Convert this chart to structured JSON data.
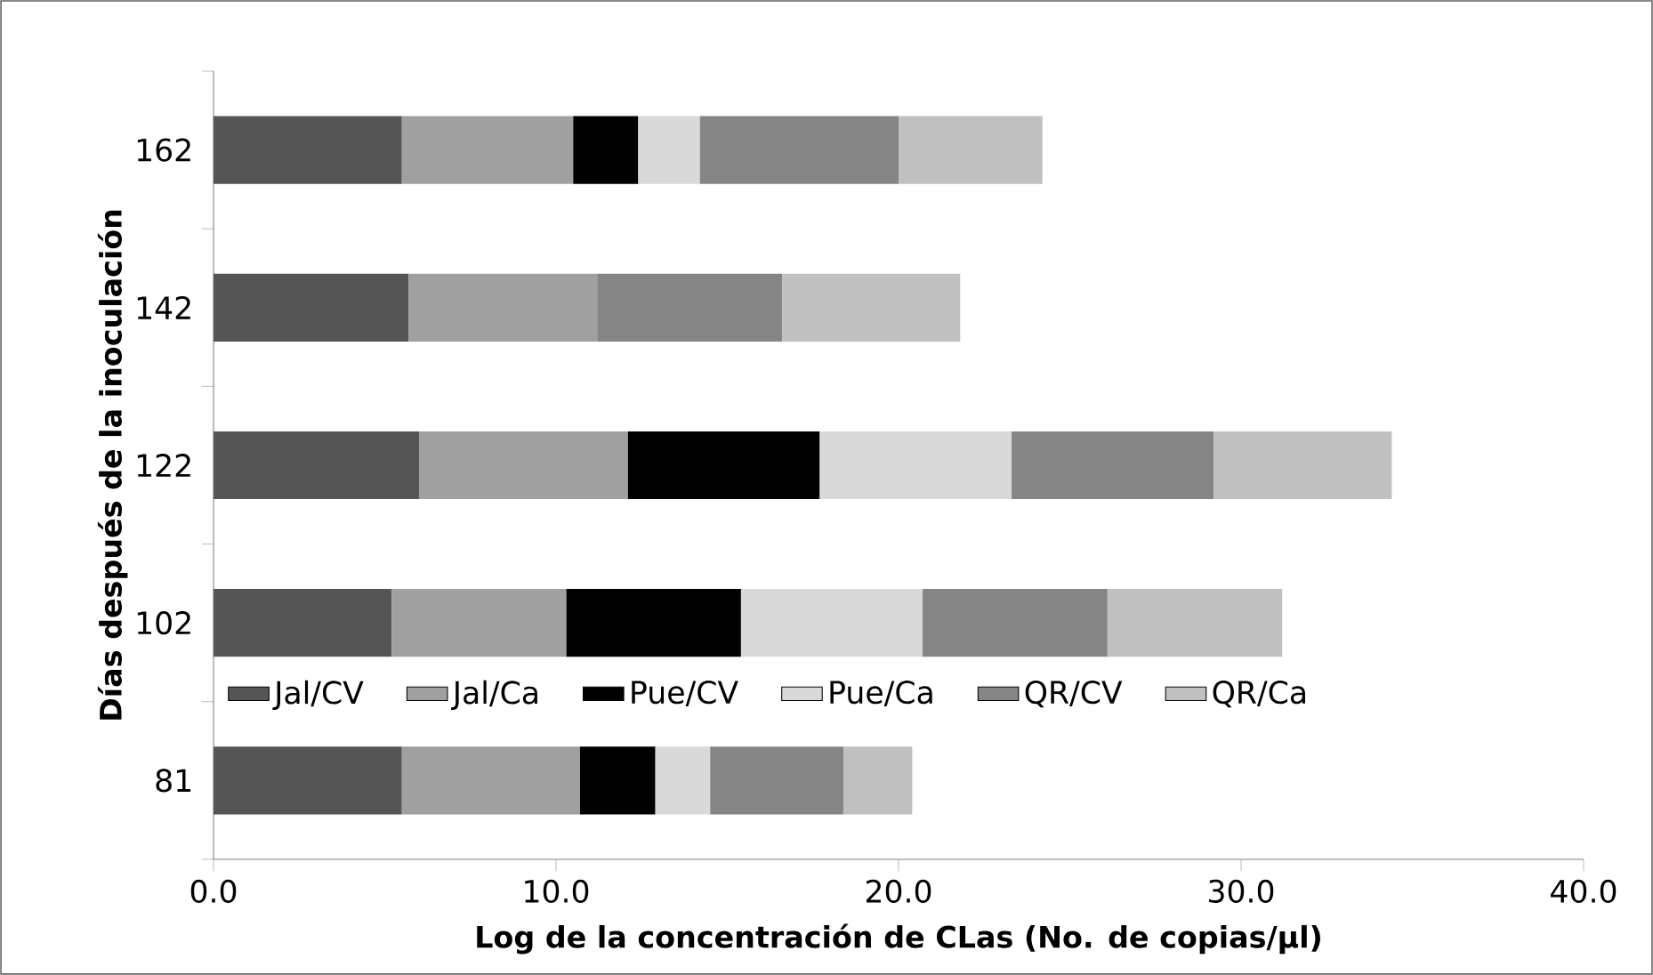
{
  "chart_data": {
    "type": "bar",
    "orientation": "horizontal",
    "stacked": true,
    "xlabel": "Log de la concentración de CLas (No. de copias/µl)",
    "ylabel": "Días después de la inoculación",
    "categories": [
      "162",
      "142",
      "122",
      "102",
      "81"
    ],
    "series": [
      {
        "name": "Jal/CV",
        "color": "#555555",
        "values": [
          5.5,
          5.7,
          6.0,
          5.2,
          5.5
        ]
      },
      {
        "name": "Jal/Ca",
        "color": "#a0a0a0",
        "values": [
          5.0,
          5.5,
          6.1,
          5.1,
          5.2
        ]
      },
      {
        "name": "Pue/CV",
        "color": "#000000",
        "values": [
          1.9,
          null,
          5.6,
          5.1,
          2.2
        ]
      },
      {
        "name": "Pue/Ca",
        "color": "#d9d9d9",
        "values": [
          1.8,
          null,
          5.6,
          5.3,
          1.6
        ]
      },
      {
        "name": "QR/CV",
        "color": "#858585",
        "values": [
          5.8,
          5.4,
          5.9,
          5.4,
          3.9
        ]
      },
      {
        "name": "QR/Ca",
        "color": "#c0c0c0",
        "values": [
          4.2,
          5.2,
          5.2,
          5.1,
          2.0
        ]
      }
    ],
    "xlim": [
      0,
      40
    ],
    "xticks": [
      {
        "value": 0,
        "label": "0.0"
      },
      {
        "value": 10,
        "label": "10.0"
      },
      {
        "value": 20,
        "label": "20.0"
      },
      {
        "value": 30,
        "label": "30.0"
      },
      {
        "value": 40,
        "label": "40.0"
      }
    ],
    "grid": false,
    "legend": "bottom"
  }
}
